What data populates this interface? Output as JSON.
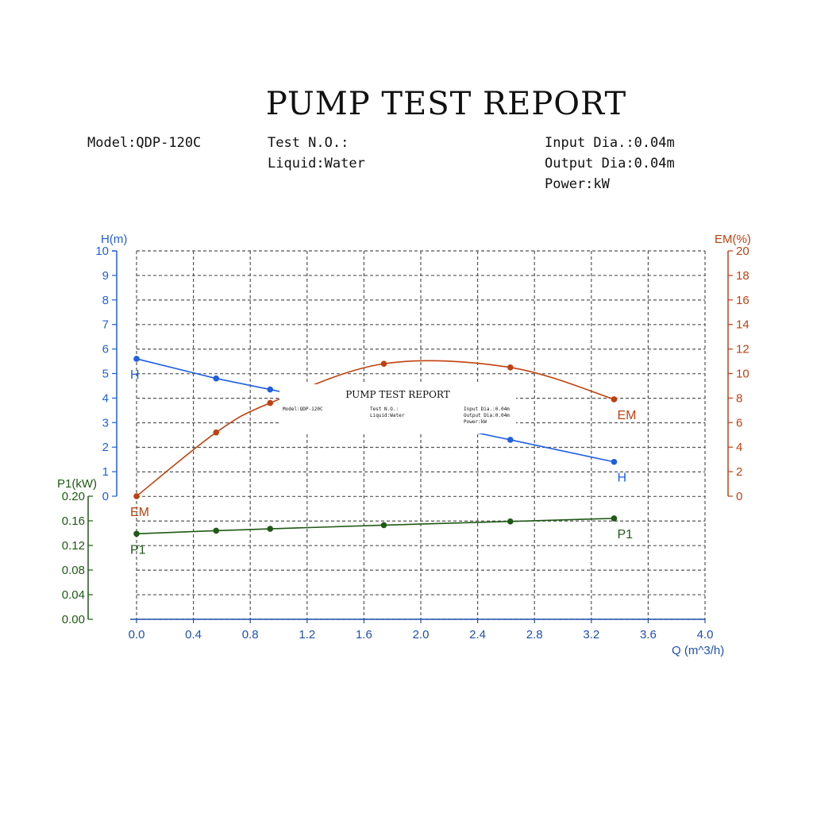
{
  "report": {
    "title": "PUMP TEST REPORT",
    "model": "Model:QDP-120C",
    "test_no": "Test N.O.:",
    "liquid": "Liquid:Water",
    "input_dia": "Input Dia.:0.04m",
    "output_dia": "Output Dia:0.04m",
    "power": "Power:kW"
  },
  "inset": {
    "title": "PUMP TEST REPORT",
    "model": "Model:QDP-120C",
    "test_no": "Test N.O.:",
    "liquid": "Liquid:Water",
    "input_dia": "Input Dia.:0.04m",
    "output_dia": "Output Dia:0.04m",
    "power": "Power:kW"
  },
  "chart_data": {
    "type": "line",
    "xlabel": "Q (m^3/h)",
    "xlim": [
      0.0,
      4.0
    ],
    "xticks": [
      "0.0",
      "0.4",
      "0.8",
      "1.2",
      "1.6",
      "2.0",
      "2.4",
      "2.8",
      "3.2",
      "3.6",
      "4.0"
    ],
    "axes": {
      "H": {
        "label": "H(m)",
        "ylim": [
          0,
          10
        ],
        "ticks": [
          "0",
          "1",
          "2",
          "3",
          "4",
          "5",
          "6",
          "7",
          "8",
          "9",
          "10"
        ],
        "color": "#1f5fe0"
      },
      "EM": {
        "label": "EM(%)",
        "ylim": [
          0,
          20
        ],
        "ticks": [
          "0",
          "2",
          "4",
          "6",
          "8",
          "10",
          "12",
          "14",
          "16",
          "18",
          "20"
        ],
        "color": "#c0410f"
      },
      "P1": {
        "label": "P1(kW)",
        "ylim": [
          0.0,
          0.2
        ],
        "ticks": [
          "0.00",
          "0.04",
          "0.08",
          "0.12",
          "0.16",
          "0.20"
        ],
        "color": "#1e5a14"
      }
    },
    "series": [
      {
        "name": "H",
        "axis": "H",
        "color": "#1f5fe0",
        "x": [
          0.0,
          0.56,
          0.94,
          2.63,
          3.36
        ],
        "y": [
          5.6,
          4.8,
          4.35,
          2.3,
          1.4
        ]
      },
      {
        "name": "EM",
        "axis": "EM",
        "color": "#c0410f",
        "x": [
          0.0,
          0.56,
          0.94,
          1.74,
          2.63,
          3.36
        ],
        "y": [
          0.0,
          5.2,
          7.6,
          10.8,
          10.5,
          7.9
        ]
      },
      {
        "name": "P1",
        "axis": "P1",
        "color": "#1e5a14",
        "x": [
          0.0,
          0.56,
          0.94,
          1.74,
          2.63,
          3.36
        ],
        "y": [
          0.139,
          0.144,
          0.147,
          0.153,
          0.159,
          0.164
        ]
      }
    ],
    "grid": true
  }
}
